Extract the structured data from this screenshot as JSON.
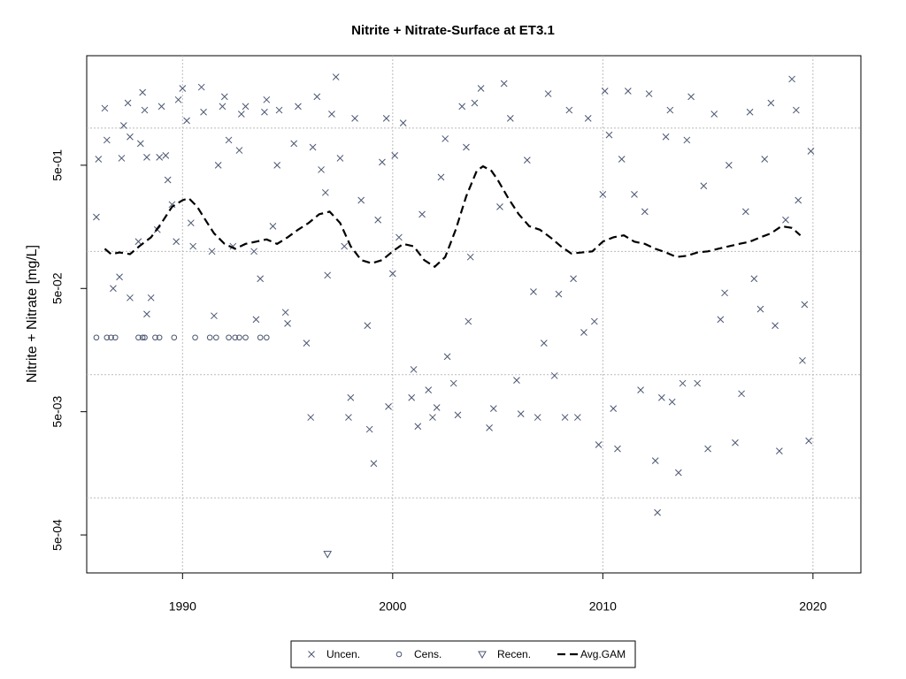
{
  "chart_data": {
    "type": "scatter",
    "title": "Nitrite + Nitrate-Surface at ET3.1",
    "y_label": "Nitrite + Nitrate [mg/L]",
    "log_y": true,
    "xlim": [
      1985.44,
      2022.28
    ],
    "ylim": [
      0.000246,
      3.87
    ],
    "xticks": [
      1990,
      2000,
      2010,
      2020
    ],
    "yticks": [
      {
        "value": 0.5,
        "label": "5e-01"
      },
      {
        "value": 0.05,
        "label": "5e-02"
      },
      {
        "value": 0.005,
        "label": "5e-03"
      },
      {
        "value": 0.0005,
        "label": "5e-04"
      }
    ],
    "xgrid": true,
    "ygrid": [
      1,
      0.1,
      0.01,
      0.001
    ],
    "legend": "bottom",
    "series": [
      {
        "name": "Uncen.",
        "color": "#4a5672",
        "marker": "x",
        "x": [
          1985.9,
          1986.0,
          1986.3,
          1986.4,
          1986.7,
          1987.0,
          1987.1,
          1987.2,
          1987.4,
          1987.5,
          1987.5,
          1987.9,
          1988.0,
          1988.1,
          1988.2,
          1988.3,
          1988.3,
          1988.5,
          1988.8,
          1988.9,
          1989.0,
          1989.2,
          1989.3,
          1989.5,
          1989.7,
          1989.8,
          1990.0,
          1990.2,
          1990.4,
          1990.5,
          1990.9,
          1991.0,
          1991.4,
          1991.5,
          1991.7,
          1991.9,
          1992.0,
          1992.2,
          1992.4,
          1992.7,
          1992.8,
          1993.0,
          1993.4,
          1993.5,
          1993.7,
          1993.9,
          1994.0,
          1994.3,
          1994.5,
          1994.6,
          1994.9,
          1995.0,
          1995.3,
          1995.5,
          1995.9,
          1996.1,
          1996.2,
          1996.4,
          1996.6,
          1996.8,
          1996.9,
          1997.1,
          1997.3,
          1997.5,
          1997.7,
          1997.9,
          1998.0,
          1998.2,
          1998.5,
          1998.8,
          1998.9,
          1999.1,
          1999.3,
          1999.5,
          1999.7,
          1999.8,
          2000.0,
          2000.1,
          2000.3,
          2000.5,
          2000.9,
          2001.0,
          2001.2,
          2001.4,
          2001.7,
          2001.9,
          2002.1,
          2002.3,
          2002.5,
          2002.6,
          2002.9,
          2003.1,
          2003.3,
          2003.5,
          2003.6,
          2003.7,
          2003.9,
          2004.2,
          2004.6,
          2004.8,
          2005.1,
          2005.3,
          2005.6,
          2005.9,
          2006.1,
          2006.4,
          2006.7,
          2006.9,
          2007.2,
          2007.4,
          2007.7,
          2007.9,
          2008.2,
          2008.4,
          2008.6,
          2008.8,
          2009.1,
          2009.3,
          2009.6,
          2009.8,
          2010.0,
          2010.1,
          2010.3,
          2010.5,
          2010.7,
          2010.9,
          2011.2,
          2011.5,
          2011.8,
          2012.0,
          2012.2,
          2012.5,
          2012.6,
          2012.8,
          2013.0,
          2013.2,
          2013.3,
          2013.6,
          2013.8,
          2014.0,
          2014.2,
          2014.5,
          2014.8,
          2015.0,
          2015.3,
          2015.6,
          2015.8,
          2016.0,
          2016.3,
          2016.6,
          2016.8,
          2017.0,
          2017.2,
          2017.5,
          2017.7,
          2018.0,
          2018.2,
          2018.4,
          2018.7,
          2019.0,
          2019.2,
          2019.3,
          2019.5,
          2019.6,
          2019.8,
          2019.9
        ],
        "values": [
          0.19,
          0.56,
          1.45,
          0.8,
          0.05,
          0.062,
          0.57,
          1.05,
          1.6,
          0.85,
          0.042,
          0.12,
          0.75,
          1.95,
          1.4,
          0.58,
          0.031,
          0.042,
          0.15,
          0.58,
          1.5,
          0.6,
          0.38,
          0.24,
          0.12,
          1.7,
          2.1,
          1.15,
          0.17,
          0.11,
          2.15,
          1.35,
          0.1,
          0.03,
          0.5,
          1.5,
          1.8,
          0.8,
          0.11,
          0.66,
          1.3,
          1.5,
          0.1,
          0.028,
          0.06,
          1.35,
          1.7,
          0.16,
          0.5,
          1.4,
          0.032,
          0.026,
          0.75,
          1.5,
          0.018,
          0.0045,
          0.7,
          1.8,
          0.46,
          0.3,
          0.064,
          1.3,
          2.6,
          0.57,
          0.11,
          0.0045,
          0.0065,
          1.2,
          0.26,
          0.025,
          0.0036,
          0.0019,
          0.18,
          0.53,
          1.2,
          0.0055,
          0.066,
          0.6,
          0.13,
          1.1,
          0.0065,
          0.011,
          0.0038,
          0.2,
          0.0075,
          0.0045,
          0.0054,
          0.4,
          0.82,
          0.014,
          0.0085,
          0.0047,
          1.5,
          0.7,
          0.027,
          0.09,
          1.6,
          2.1,
          0.0037,
          0.0053,
          0.23,
          2.3,
          1.2,
          0.009,
          0.0048,
          0.55,
          0.047,
          0.0045,
          0.018,
          1.9,
          0.0098,
          0.045,
          0.0045,
          1.4,
          0.06,
          0.0045,
          0.022,
          1.2,
          0.027,
          0.0027,
          0.29,
          2.0,
          0.88,
          0.0053,
          0.0025,
          0.56,
          2.0,
          0.29,
          0.0075,
          0.21,
          1.9,
          0.002,
          0.00076,
          0.0065,
          0.85,
          1.4,
          0.006,
          0.0016,
          0.0085,
          0.8,
          1.8,
          0.0085,
          0.34,
          0.0025,
          1.3,
          0.028,
          0.046,
          0.5,
          0.0028,
          0.007,
          0.21,
          1.35,
          0.06,
          0.034,
          0.56,
          1.6,
          0.025,
          0.0024,
          0.18,
          2.5,
          1.4,
          0.26,
          0.013,
          0.037,
          0.0029,
          0.65
        ]
      },
      {
        "name": "Cens.",
        "color": "#4a5672",
        "marker": "circle",
        "x": [
          1985.9,
          1986.4,
          1986.6,
          1986.8,
          1987.9,
          1988.1,
          1988.2,
          1988.7,
          1988.9,
          1989.6,
          1990.6,
          1991.3,
          1991.6,
          1992.2,
          1992.5,
          1992.7,
          1993.0,
          1993.7,
          1994.0
        ],
        "values": [
          0.02,
          0.02,
          0.02,
          0.02,
          0.02,
          0.02,
          0.02,
          0.02,
          0.02,
          0.02,
          0.02,
          0.02,
          0.02,
          0.02,
          0.02,
          0.02,
          0.02,
          0.02,
          0.02
        ]
      },
      {
        "name": "Recen.",
        "color": "#4a5672",
        "marker": "triangle-down",
        "x": [
          1996.9
        ],
        "values": [
          0.00035
        ]
      },
      {
        "name": "Avg.GAM",
        "color": "#000000",
        "marker": "dashed-line",
        "x": [
          1986.3,
          1986.6,
          1987.0,
          1987.5,
          1988.0,
          1988.5,
          1989.0,
          1989.5,
          1990.0,
          1990.3,
          1990.7,
          1991.0,
          1991.5,
          1992.0,
          1992.5,
          1993.0,
          1993.5,
          1994.0,
          1994.5,
          1995.0,
          1995.5,
          1996.0,
          1996.5,
          1997.0,
          1997.5,
          1998.0,
          1998.5,
          1999.0,
          1999.5,
          2000.0,
          2000.5,
          2001.0,
          2001.5,
          2002.0,
          2002.5,
          2003.0,
          2003.5,
          2004.0,
          2004.3,
          2004.7,
          2005.0,
          2005.5,
          2006.0,
          2006.5,
          2007.0,
          2007.5,
          2008.0,
          2008.5,
          2009.0,
          2009.5,
          2010.0,
          2010.5,
          2011.0,
          2011.5,
          2012.0,
          2012.5,
          2013.0,
          2013.5,
          2014.0,
          2014.5,
          2015.0,
          2015.5,
          2016.0,
          2016.5,
          2017.0,
          2017.5,
          2018.0,
          2018.5,
          2019.0,
          2019.4
        ],
        "values": [
          0.105,
          0.095,
          0.098,
          0.095,
          0.112,
          0.13,
          0.17,
          0.23,
          0.26,
          0.27,
          0.23,
          0.19,
          0.14,
          0.115,
          0.105,
          0.115,
          0.12,
          0.125,
          0.115,
          0.13,
          0.15,
          0.17,
          0.2,
          0.21,
          0.17,
          0.11,
          0.085,
          0.08,
          0.085,
          0.1,
          0.115,
          0.11,
          0.085,
          0.075,
          0.09,
          0.15,
          0.28,
          0.45,
          0.49,
          0.45,
          0.38,
          0.27,
          0.2,
          0.16,
          0.15,
          0.13,
          0.11,
          0.096,
          0.098,
          0.1,
          0.12,
          0.13,
          0.135,
          0.12,
          0.115,
          0.105,
          0.098,
          0.09,
          0.092,
          0.098,
          0.1,
          0.105,
          0.11,
          0.115,
          0.12,
          0.13,
          0.14,
          0.16,
          0.155,
          0.135
        ]
      }
    ]
  }
}
